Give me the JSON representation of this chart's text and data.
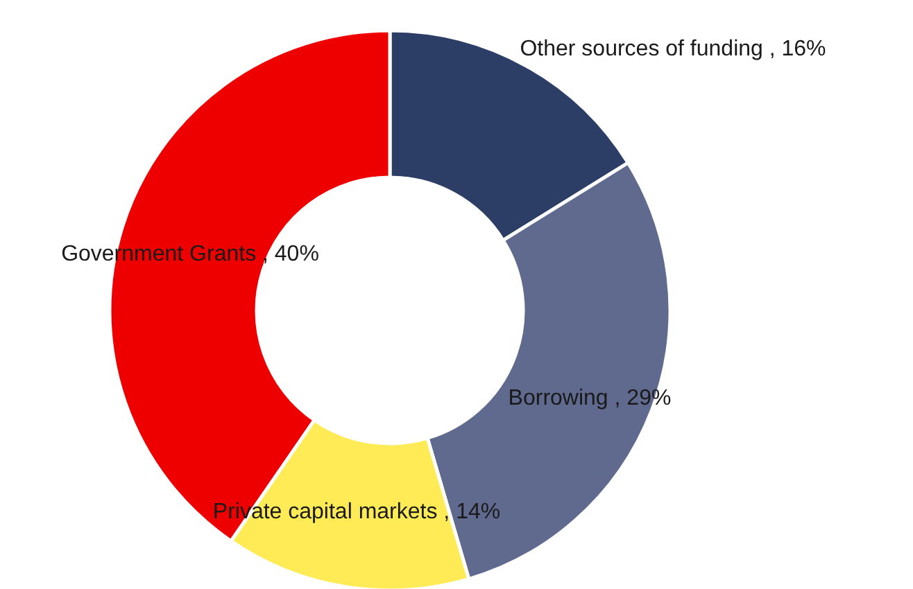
{
  "chart_data": {
    "type": "donut",
    "categories": [
      "Other sources of funding",
      "Borrowing",
      "Private capital markets",
      "Government Grants"
    ],
    "values": [
      16,
      29,
      14,
      40
    ],
    "value_labels": [
      "16%",
      "29%",
      "14%",
      "40%"
    ],
    "colors": [
      "#2c3e66",
      "#5f6a8e",
      "#ffeb55",
      "#ee0000"
    ],
    "legend": false
  }
}
